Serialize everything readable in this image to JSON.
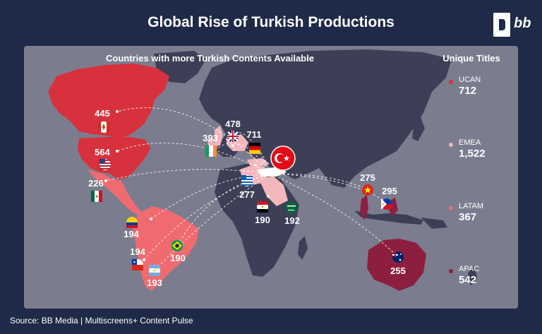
{
  "title": "Global Rise of Turkish Productions",
  "subtitle": "Countries with more Turkish Contents Available",
  "logo_text": "bb",
  "unique_titles_header": "Unique Titles",
  "regions": [
    {
      "name": "UCAN",
      "value": "712",
      "color": "#d7313e"
    },
    {
      "name": "EMEA",
      "value": "1,522",
      "color": "#f4b6bd"
    },
    {
      "name": "LATAM",
      "value": "367",
      "color": "#ef6b70"
    },
    {
      "name": "APAC",
      "value": "542",
      "color": "#8c1f3f"
    }
  ],
  "countries": [
    {
      "name": "Canada",
      "value": "445"
    },
    {
      "name": "United States",
      "value": "564"
    },
    {
      "name": "Mexico",
      "value": "226"
    },
    {
      "name": "United Kingdom",
      "value": "478"
    },
    {
      "name": "Ireland",
      "value": "393"
    },
    {
      "name": "Germany",
      "value": "711"
    },
    {
      "name": "Greece",
      "value": "277"
    },
    {
      "name": "Egypt",
      "value": "190"
    },
    {
      "name": "Saudi Arabia",
      "value": "192"
    },
    {
      "name": "Vietnam",
      "value": "275"
    },
    {
      "name": "Philippines",
      "value": "295"
    },
    {
      "name": "Australia",
      "value": "255"
    },
    {
      "name": "Colombia",
      "value": "194"
    },
    {
      "name": "Brazil",
      "value": "190"
    },
    {
      "name": "Chile",
      "value": "194"
    },
    {
      "name": "Argentina",
      "value": "193"
    }
  ],
  "source": "Source: BB Media | Multiscreens+ Content Pulse",
  "colors": {
    "background": "#1e2a47",
    "ocean": "#7b7d8e",
    "land": "#3c3f55",
    "ucan": "#d7313e",
    "emea": "#f4b6bd",
    "latam": "#ef6b70",
    "apac": "#8c1f3f"
  }
}
